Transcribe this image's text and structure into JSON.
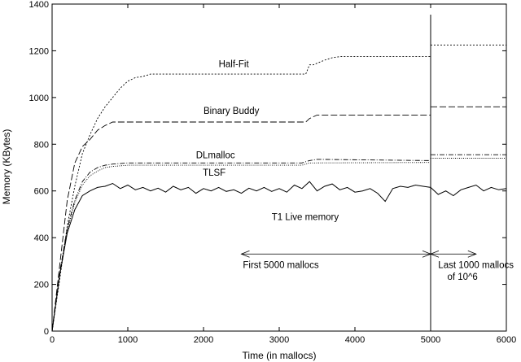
{
  "chart_data": {
    "type": "line",
    "title": "",
    "xlabel": "Time (in mallocs)",
    "ylabel": "Memory (KBytes)",
    "xlim": [
      0,
      6000
    ],
    "ylim": [
      0,
      1400
    ],
    "xticks": [
      0,
      1000,
      2000,
      3000,
      4000,
      5000,
      6000
    ],
    "yticks": [
      0,
      200,
      400,
      600,
      800,
      1000,
      1200,
      1400
    ],
    "grid": false,
    "series": [
      {
        "name": "Half-Fit",
        "style": "dotted",
        "points": [
          [
            0,
            0
          ],
          [
            100,
            220
          ],
          [
            200,
            450
          ],
          [
            300,
            620
          ],
          [
            400,
            760
          ],
          [
            500,
            840
          ],
          [
            600,
            910
          ],
          [
            700,
            960
          ],
          [
            800,
            1000
          ],
          [
            900,
            1040
          ],
          [
            1000,
            1070
          ],
          [
            1100,
            1085
          ],
          [
            1200,
            1090
          ],
          [
            1300,
            1100
          ],
          [
            1400,
            1100
          ],
          [
            3350,
            1100
          ],
          [
            3400,
            1140
          ],
          [
            3450,
            1140
          ],
          [
            3600,
            1160
          ],
          [
            3700,
            1170
          ],
          [
            3800,
            1175
          ],
          [
            5000,
            1175
          ]
        ],
        "tail": [
          [
            5000,
            1225
          ],
          [
            6000,
            1225
          ]
        ]
      },
      {
        "name": "Binary Buddy",
        "style": "long-dash",
        "points": [
          [
            0,
            0
          ],
          [
            100,
            280
          ],
          [
            200,
            560
          ],
          [
            300,
            720
          ],
          [
            400,
            790
          ],
          [
            500,
            820
          ],
          [
            600,
            860
          ],
          [
            700,
            880
          ],
          [
            800,
            895
          ],
          [
            3350,
            895
          ],
          [
            3400,
            910
          ],
          [
            3500,
            925
          ],
          [
            5000,
            925
          ]
        ],
        "tail": [
          [
            5000,
            960
          ],
          [
            6000,
            960
          ]
        ]
      },
      {
        "name": "DLmalloc",
        "style": "dash-dot",
        "points": [
          [
            0,
            0
          ],
          [
            100,
            250
          ],
          [
            200,
            440
          ],
          [
            300,
            560
          ],
          [
            400,
            640
          ],
          [
            500,
            680
          ],
          [
            600,
            700
          ],
          [
            700,
            710
          ],
          [
            800,
            715
          ],
          [
            1000,
            720
          ],
          [
            3300,
            720
          ],
          [
            3400,
            730
          ],
          [
            3500,
            735
          ],
          [
            5000,
            730
          ]
        ],
        "tail": [
          [
            5000,
            755
          ],
          [
            6000,
            755
          ]
        ]
      },
      {
        "name": "TLSF",
        "style": "fine-dot",
        "points": [
          [
            0,
            0
          ],
          [
            100,
            240
          ],
          [
            200,
            430
          ],
          [
            300,
            550
          ],
          [
            400,
            625
          ],
          [
            500,
            665
          ],
          [
            600,
            685
          ],
          [
            700,
            700
          ],
          [
            800,
            705
          ],
          [
            1000,
            710
          ],
          [
            3300,
            710
          ],
          [
            3400,
            720
          ],
          [
            5000,
            722
          ]
        ],
        "tail": [
          [
            5000,
            740
          ],
          [
            6000,
            740
          ]
        ]
      },
      {
        "name": "T1 Live memory",
        "style": "solid",
        "points": [
          [
            0,
            0
          ],
          [
            100,
            240
          ],
          [
            200,
            420
          ],
          [
            300,
            520
          ],
          [
            400,
            580
          ],
          [
            500,
            600
          ],
          [
            600,
            615
          ],
          [
            700,
            620
          ],
          [
            800,
            632
          ],
          [
            900,
            610
          ],
          [
            1000,
            625
          ],
          [
            1100,
            605
          ],
          [
            1200,
            615
          ],
          [
            1300,
            600
          ],
          [
            1400,
            612
          ],
          [
            1500,
            595
          ],
          [
            1600,
            620
          ],
          [
            1700,
            605
          ],
          [
            1800,
            615
          ],
          [
            1900,
            590
          ],
          [
            2000,
            610
          ],
          [
            2100,
            600
          ],
          [
            2200,
            615
          ],
          [
            2300,
            598
          ],
          [
            2400,
            605
          ],
          [
            2500,
            590
          ],
          [
            2600,
            612
          ],
          [
            2700,
            600
          ],
          [
            2800,
            615
          ],
          [
            2900,
            598
          ],
          [
            3000,
            610
          ],
          [
            3100,
            595
          ],
          [
            3200,
            625
          ],
          [
            3300,
            610
          ],
          [
            3400,
            640
          ],
          [
            3500,
            600
          ],
          [
            3600,
            620
          ],
          [
            3700,
            630
          ],
          [
            3800,
            605
          ],
          [
            3900,
            615
          ],
          [
            4000,
            595
          ],
          [
            4100,
            600
          ],
          [
            4200,
            610
          ],
          [
            4300,
            590
          ],
          [
            4400,
            555
          ],
          [
            4500,
            610
          ],
          [
            4600,
            620
          ],
          [
            4700,
            615
          ],
          [
            4800,
            625
          ],
          [
            4900,
            620
          ],
          [
            5000,
            615
          ],
          [
            5100,
            585
          ],
          [
            5200,
            600
          ],
          [
            5300,
            580
          ],
          [
            5400,
            605
          ],
          [
            5500,
            615
          ],
          [
            5600,
            625
          ],
          [
            5700,
            600
          ],
          [
            5800,
            615
          ],
          [
            5900,
            605
          ],
          [
            6000,
            610
          ]
        ]
      }
    ],
    "labels": [
      {
        "text": "Half-Fit",
        "x": 2200,
        "y": 1130
      },
      {
        "text": "Binary Buddy",
        "x": 2000,
        "y": 930
      },
      {
        "text": "DLmalloc",
        "x": 1900,
        "y": 740
      },
      {
        "text": "TLSF",
        "x": 1990,
        "y": 665
      },
      {
        "text": "T1 Live memory",
        "x": 2900,
        "y": 475
      }
    ],
    "annotations": [
      {
        "text": "First 5000 mallocs",
        "x": 2520,
        "y": 270
      },
      {
        "text": "Last 1000 mallocs",
        "x": 5100,
        "y": 270
      },
      {
        "text": "of 10^6",
        "x": 5220,
        "y": 220
      }
    ],
    "divider_x": 5000,
    "range_arrows": [
      {
        "from": 2500,
        "to": 5000,
        "y": 330
      },
      {
        "from": 5000,
        "to": 5600,
        "y": 330
      }
    ]
  }
}
